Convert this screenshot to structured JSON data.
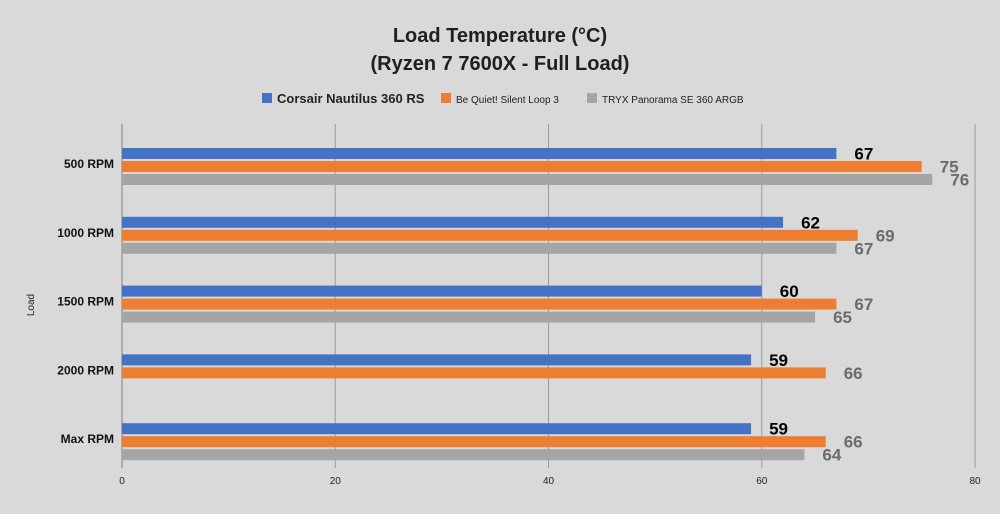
{
  "chart_data": {
    "type": "bar",
    "orientation": "horizontal",
    "title": "Load Temperature (°C)",
    "subtitle": "(Ryzen 7 7600X - Full Load)",
    "ylabel": "Load",
    "xlabel": "",
    "xlim": [
      0,
      80
    ],
    "x_ticks": [
      "0",
      "20",
      "40",
      "60",
      "80"
    ],
    "grid": "vertical",
    "legend_position": "top",
    "categories": [
      "500 RPM",
      "1000 RPM",
      "1500 RPM",
      "2000 RPM",
      "Max RPM"
    ],
    "series": [
      {
        "name": "Corsair Nautilus 360 RS",
        "color": "#4472c4",
        "label_color": "#000000",
        "values": [
          67,
          62,
          60,
          59,
          59
        ],
        "labels": [
          "67",
          "62",
          "60",
          "59",
          "59"
        ]
      },
      {
        "name": "Be Quiet! Silent Loop 3",
        "color": "#ed7d31",
        "label_color": "#6b6b6b",
        "values": [
          75,
          69,
          67,
          66,
          66
        ],
        "labels": [
          "75",
          "69",
          "67",
          "66",
          "66"
        ]
      },
      {
        "name": "TRYX Panorama SE 360 ARGB",
        "color": "#a5a5a5",
        "label_color": "#6b6b6b",
        "values": [
          76,
          67,
          65,
          null,
          64
        ],
        "labels": [
          "76",
          "67",
          "65",
          "",
          "64"
        ]
      }
    ]
  }
}
